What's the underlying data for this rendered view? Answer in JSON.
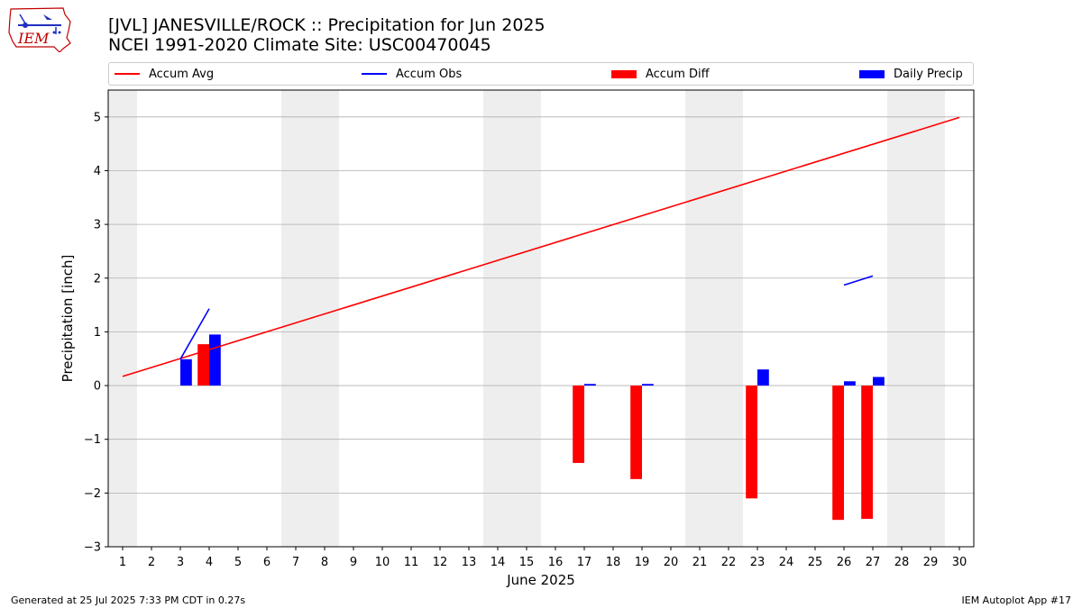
{
  "title_line1": "[JVL] JANESVILLE/ROCK :: Precipitation for Jun 2025",
  "title_line2": "NCEI 1991-2020 Climate Site: USC00470045",
  "logo_text": "IEM",
  "legend": {
    "accum_avg": "Accum Avg",
    "accum_obs": "Accum Obs",
    "accum_diff": "Accum Diff",
    "daily_precip": "Daily Precip"
  },
  "colors": {
    "accum_avg": "#ff0000",
    "accum_obs": "#0000ff",
    "accum_diff": "#ff0000",
    "daily_precip": "#0000ff",
    "weekend_shade": "#eeeeee",
    "grid": "#b0b0b0"
  },
  "footer_left": "Generated at 25 Jul 2025 7:33 PM CDT in 0.27s",
  "footer_right": "IEM Autoplot App #17",
  "chart_data": {
    "type": "bar",
    "xlabel": "June 2025",
    "ylabel": "Precipitation [inch]",
    "xlim": [
      0.5,
      30.5
    ],
    "ylim": [
      -3.0,
      5.5
    ],
    "yticks": [
      -3,
      -2,
      -1,
      0,
      1,
      2,
      3,
      4,
      5
    ],
    "ytick_labels": [
      "−3",
      "−2",
      "−1",
      "0",
      "1",
      "2",
      "3",
      "4",
      "5"
    ],
    "days": [
      1,
      2,
      3,
      4,
      5,
      6,
      7,
      8,
      9,
      10,
      11,
      12,
      13,
      14,
      15,
      16,
      17,
      18,
      19,
      20,
      21,
      22,
      23,
      24,
      25,
      26,
      27,
      28,
      29,
      30
    ],
    "weekend_shading": [
      [
        0.5,
        1.5
      ],
      [
        6.5,
        8.5
      ],
      [
        13.5,
        15.5
      ],
      [
        20.5,
        22.5
      ],
      [
        27.5,
        29.5
      ]
    ],
    "grid": true,
    "legend_position": "top",
    "series": [
      {
        "name": "Accum Avg",
        "kind": "line",
        "points": [
          [
            1,
            0.17
          ],
          [
            30,
            4.99
          ]
        ]
      },
      {
        "name": "Accum Obs",
        "kind": "line",
        "segments": [
          [
            [
              3,
              0.49
            ],
            [
              4,
              1.43
            ]
          ],
          [
            [
              26,
              1.87
            ],
            [
              27,
              2.04
            ]
          ]
        ]
      },
      {
        "name": "Accum Diff",
        "kind": "bar",
        "values": [
          [
            4,
            0.77
          ],
          [
            17,
            -1.44
          ],
          [
            19,
            -1.74
          ],
          [
            23,
            -2.1
          ],
          [
            26,
            -2.5
          ],
          [
            27,
            -2.48
          ]
        ]
      },
      {
        "name": "Daily Precip",
        "kind": "bar",
        "values": [
          [
            3,
            0.49
          ],
          [
            4,
            0.95
          ],
          [
            17,
            0.03
          ],
          [
            19,
            0.03
          ],
          [
            23,
            0.3
          ],
          [
            26,
            0.08
          ],
          [
            27,
            0.16
          ]
        ]
      }
    ]
  }
}
